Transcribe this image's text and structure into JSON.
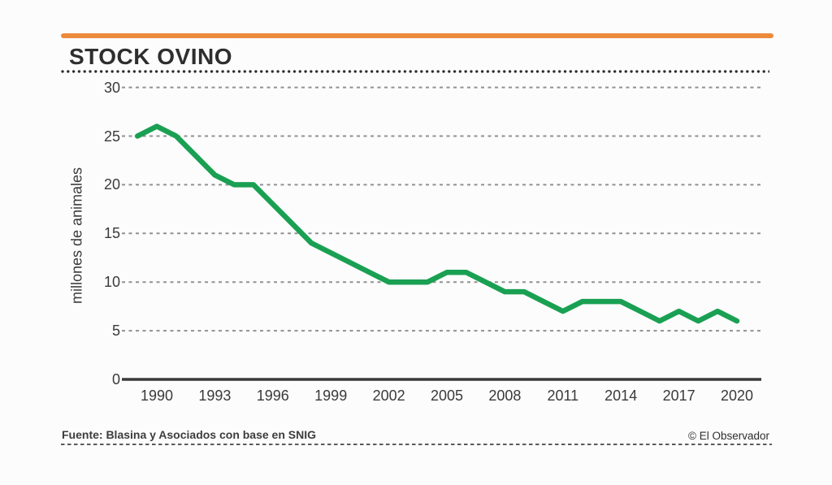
{
  "header": {
    "title": "STOCK OVINO"
  },
  "colors": {
    "accent_orange": "#EC8A3C",
    "line_green": "#1AA053",
    "axis_dark": "#3A3A3A",
    "grid_gray": "#919191",
    "text_dark": "#2E2E2E"
  },
  "footer": {
    "source": "Fuente: Blasina y Asociados con base en SNIG",
    "credit": "© El Observador"
  },
  "chart_data": {
    "type": "line",
    "title": "STOCK OVINO",
    "xlabel": "",
    "ylabel": "millones de animales",
    "ylim": [
      0,
      30
    ],
    "yticks": [
      0,
      5,
      10,
      15,
      20,
      25,
      30
    ],
    "xticks": [
      1990,
      1993,
      1996,
      1999,
      2002,
      2005,
      2008,
      2011,
      2014,
      2017,
      2020
    ],
    "grid": "horizontal-dashed",
    "legend": "none",
    "series": [
      {
        "name": "Stock ovino",
        "color": "#1AA053",
        "x": [
          1989,
          1990,
          1991,
          1992,
          1993,
          1994,
          1995,
          1996,
          1997,
          1998,
          1999,
          2000,
          2001,
          2002,
          2003,
          2004,
          2005,
          2006,
          2007,
          2008,
          2009,
          2010,
          2011,
          2012,
          2013,
          2014,
          2015,
          2016,
          2017,
          2018,
          2019,
          2020
        ],
        "values": [
          25,
          26,
          25,
          23,
          21,
          20,
          20,
          18,
          16,
          14,
          13,
          12,
          11,
          10,
          10,
          10,
          11,
          11,
          10,
          9,
          9,
          8,
          7,
          8,
          8,
          8,
          7,
          6,
          7,
          6,
          7,
          6
        ]
      }
    ]
  }
}
